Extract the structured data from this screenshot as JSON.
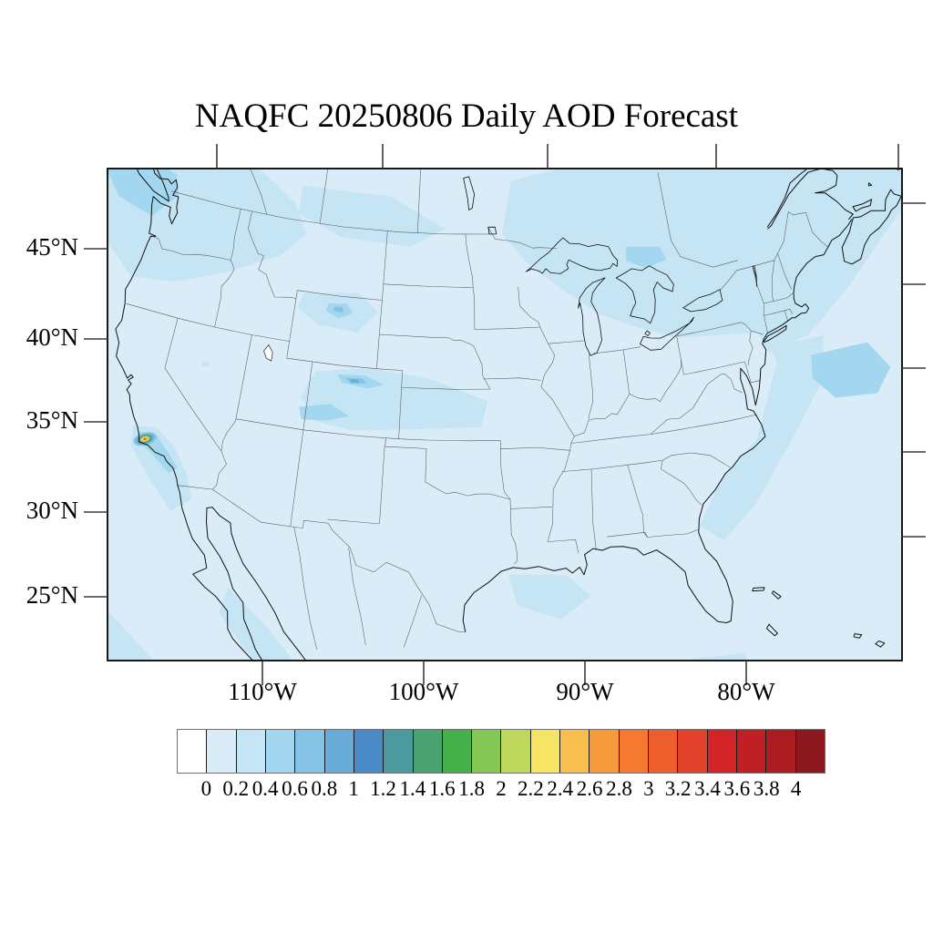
{
  "title": "NAQFC 20250806 Daily AOD Forecast",
  "map_axes": {
    "lat_tick_labels": [
      "45°N",
      "40°N",
      "35°N",
      "30°N",
      "25°N"
    ],
    "lon_tick_labels": [
      "110°W",
      "100°W",
      "90°W",
      "80°W"
    ]
  },
  "colorbar": {
    "tick_labels": [
      "0",
      "0.2",
      "0.4",
      "0.6",
      "0.8",
      "1",
      "1.2",
      "1.4",
      "1.6",
      "1.8",
      "2",
      "2.2",
      "2.4",
      "2.6",
      "2.8",
      "3",
      "3.2",
      "3.4",
      "3.6",
      "3.8",
      "4"
    ],
    "colors": [
      "#ffffff",
      "#daecf7",
      "#c5e5f4",
      "#a2d7ef",
      "#85c3e6",
      "#68abd8",
      "#4a8ac6",
      "#4b9a9f",
      "#4aa172",
      "#45b04a",
      "#84c755",
      "#bed85c",
      "#f6e565",
      "#f8bf4e",
      "#f79a3c",
      "#f57a2f",
      "#ed5e2c",
      "#e2422b",
      "#d22427",
      "#c02025",
      "#aa1c21",
      "#8c171c"
    ]
  },
  "chart_data": {
    "type": "heatmap",
    "title": "NAQFC 20250806 Daily AOD Forecast",
    "variable": "AOD (Aerosol Optical Depth), daily forecast filled contours",
    "colorbar_levels": [
      0,
      0.2,
      0.4,
      0.6,
      0.8,
      1,
      1.2,
      1.4,
      1.6,
      1.8,
      2,
      2.2,
      2.4,
      2.6,
      2.8,
      3,
      3.2,
      3.4,
      3.6,
      3.8,
      4
    ],
    "lat_ticks_deg_n": [
      45,
      40,
      35,
      30,
      25
    ],
    "lon_ticks_deg_w": [
      110,
      100,
      90,
      80
    ],
    "legend_position": "bottom",
    "grid": false,
    "regions": [
      {
        "area": "Most of CONUS and surrounding waters",
        "aod": "0.0-0.2"
      },
      {
        "area": "Pacific Northwest / British Columbia coast",
        "aod": "0.2-0.6"
      },
      {
        "area": "Northern plains / Saskatchewan border band",
        "aod": "0.2-0.4"
      },
      {
        "area": "Wyoming smoke patch",
        "aod": "0.4-0.8"
      },
      {
        "area": "Northern Colorado Front Range streak",
        "aod": "0.4-1.0"
      },
      {
        "area": "Great Lakes / Northeast / Canadian Maritimes band",
        "aod": "0.2-0.4"
      },
      {
        "area": "Atlantic offshore patch east of New England",
        "aod": "0.4-0.6"
      },
      {
        "area": "Southern California coastal plume",
        "aod": "0.2-1.0"
      },
      {
        "area": "Southern California fire hotspot core near 34.7N 120W",
        "aod": "peak 2.8-3.2"
      },
      {
        "area": "Gulf of Mexico patches",
        "aod": "0.2-0.4"
      }
    ]
  }
}
